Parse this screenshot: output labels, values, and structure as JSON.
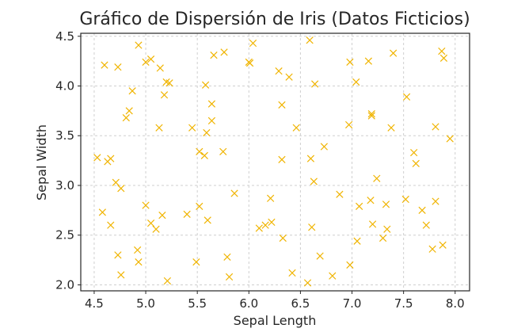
{
  "chart_data": {
    "type": "scatter",
    "title": "Gráfico de Dispersión de Iris (Datos Ficticios)",
    "xlabel": "Sepal Length",
    "ylabel": "Sepal Width",
    "xlim": [
      4.37,
      8.14
    ],
    "ylim": [
      1.94,
      4.53
    ],
    "xticks": [
      "4.5",
      "5.0",
      "5.5",
      "6.0",
      "6.5",
      "7.0",
      "7.5",
      "8.0"
    ],
    "yticks": [
      "2.0",
      "2.5",
      "3.0",
      "3.5",
      "4.0",
      "4.5"
    ],
    "grid": true,
    "marker": "x",
    "color": "#f0b400",
    "series": [
      {
        "points": [
          [
            4.53,
            3.28
          ],
          [
            4.58,
            2.73
          ],
          [
            4.6,
            4.21
          ],
          [
            4.63,
            3.24
          ],
          [
            4.66,
            3.27
          ],
          [
            4.66,
            2.6
          ],
          [
            4.71,
            3.03
          ],
          [
            4.73,
            4.19
          ],
          [
            4.73,
            2.3
          ],
          [
            4.76,
            2.97
          ],
          [
            4.76,
            2.1
          ],
          [
            4.81,
            3.68
          ],
          [
            4.84,
            3.75
          ],
          [
            4.87,
            3.95
          ],
          [
            4.92,
            2.35
          ],
          [
            4.93,
            2.23
          ],
          [
            4.93,
            4.41
          ],
          [
            5.0,
            4.24
          ],
          [
            5.0,
            2.8
          ],
          [
            5.05,
            4.27
          ],
          [
            5.05,
            2.62
          ],
          [
            5.1,
            2.56
          ],
          [
            5.13,
            3.58
          ],
          [
            5.14,
            4.18
          ],
          [
            5.16,
            2.7
          ],
          [
            5.18,
            3.91
          ],
          [
            5.2,
            4.04
          ],
          [
            5.21,
            2.04
          ],
          [
            5.23,
            4.03
          ],
          [
            5.4,
            2.71
          ],
          [
            5.45,
            3.58
          ],
          [
            5.49,
            2.23
          ],
          [
            5.52,
            3.34
          ],
          [
            5.52,
            2.79
          ],
          [
            5.57,
            3.3
          ],
          [
            5.58,
            4.01
          ],
          [
            5.59,
            3.53
          ],
          [
            5.6,
            2.65
          ],
          [
            5.64,
            3.82
          ],
          [
            5.64,
            3.65
          ],
          [
            5.66,
            4.31
          ],
          [
            5.75,
            3.34
          ],
          [
            5.76,
            4.34
          ],
          [
            5.79,
            2.28
          ],
          [
            5.81,
            2.08
          ],
          [
            5.86,
            2.92
          ],
          [
            6.0,
            4.24
          ],
          [
            6.01,
            4.23
          ],
          [
            6.04,
            4.43
          ],
          [
            6.1,
            2.57
          ],
          [
            6.16,
            2.6
          ],
          [
            6.21,
            2.87
          ],
          [
            6.22,
            2.63
          ],
          [
            6.29,
            4.15
          ],
          [
            6.32,
            3.81
          ],
          [
            6.32,
            3.26
          ],
          [
            6.33,
            2.47
          ],
          [
            6.39,
            4.09
          ],
          [
            6.42,
            2.12
          ],
          [
            6.46,
            3.58
          ],
          [
            6.57,
            2.02
          ],
          [
            6.59,
            4.46
          ],
          [
            6.61,
            2.58
          ],
          [
            6.6,
            3.27
          ],
          [
            6.63,
            3.04
          ],
          [
            6.64,
            4.02
          ],
          [
            6.69,
            2.29
          ],
          [
            6.73,
            3.39
          ],
          [
            6.81,
            2.09
          ],
          [
            6.88,
            2.91
          ],
          [
            6.97,
            3.61
          ],
          [
            6.98,
            2.2
          ],
          [
            6.98,
            4.24
          ],
          [
            7.04,
            4.04
          ],
          [
            7.05,
            2.44
          ],
          [
            7.07,
            2.79
          ],
          [
            7.16,
            4.25
          ],
          [
            7.18,
            2.85
          ],
          [
            7.19,
            3.72
          ],
          [
            7.19,
            3.7
          ],
          [
            7.2,
            2.61
          ],
          [
            7.24,
            3.07
          ],
          [
            7.3,
            2.47
          ],
          [
            7.33,
            2.81
          ],
          [
            7.34,
            2.56
          ],
          [
            7.38,
            3.58
          ],
          [
            7.4,
            4.33
          ],
          [
            7.52,
            2.86
          ],
          [
            7.53,
            3.89
          ],
          [
            7.6,
            3.33
          ],
          [
            7.62,
            3.22
          ],
          [
            7.68,
            2.75
          ],
          [
            7.72,
            2.6
          ],
          [
            7.78,
            2.36
          ],
          [
            7.81,
            3.59
          ],
          [
            7.81,
            2.84
          ],
          [
            7.87,
            4.35
          ],
          [
            7.89,
            4.28
          ],
          [
            7.88,
            2.4
          ],
          [
            7.95,
            3.47
          ]
        ]
      }
    ]
  }
}
